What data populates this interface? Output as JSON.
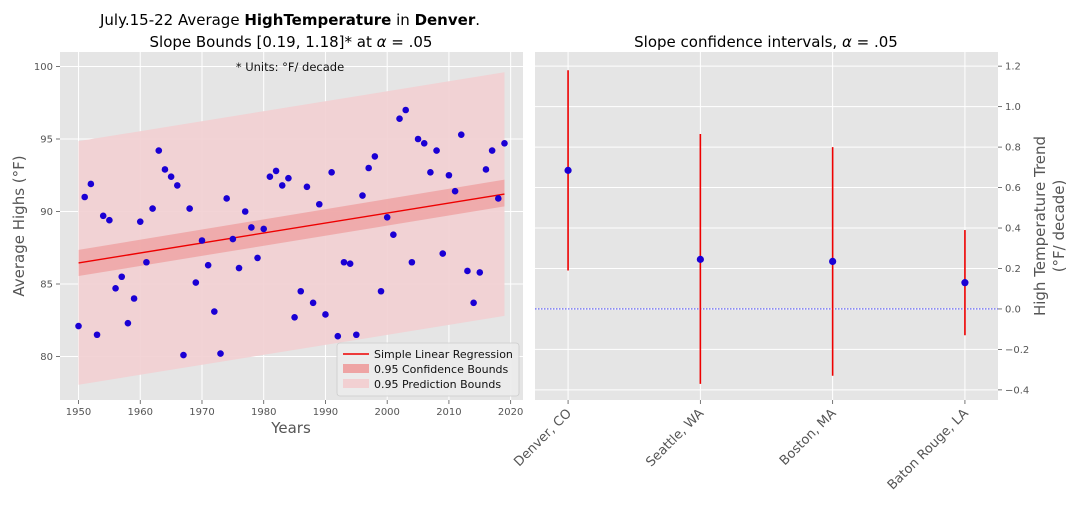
{
  "chart_data": [
    {
      "type": "scatter",
      "title": {
        "l1_a": "July.15-22 Average ",
        "l1_b": "HighTemperature",
        "l1_c": " in ",
        "l1_d": "Denver",
        "l1_e": ".",
        "l2_a": "Slope Bounds [0.19, 1.18]* at ",
        "l2_b": "α",
        "l2_c": " = .05"
      },
      "annotation": "* Units:  °F/ decade",
      "xlabel": "Years",
      "ylabel": "Average Highs (°F)",
      "xlim": [
        1947,
        2022
      ],
      "ylim": [
        77.0,
        101.0
      ],
      "xticks": [
        1950,
        1960,
        1970,
        1980,
        1990,
        2000,
        2010,
        2020
      ],
      "yticks": [
        80,
        85,
        90,
        95,
        100
      ],
      "grid": true,
      "legend_position": "lower-right",
      "legend": [
        {
          "label": "Simple Linear Regression",
          "kind": "line",
          "color": "#ee0000"
        },
        {
          "label": "0.95 Confidence Bounds",
          "kind": "patch",
          "color": "#f0a8a8"
        },
        {
          "label": "0.95 Prediction Bounds",
          "kind": "patch",
          "color": "#f2d0d2"
        }
      ],
      "regression": {
        "x": [
          1950,
          2019
        ],
        "y": [
          86.45,
          91.2
        ]
      },
      "confidence_band": {
        "x": [
          1950,
          2019
        ],
        "lower": [
          85.55,
          90.35
        ],
        "upper": [
          87.35,
          92.2
        ]
      },
      "prediction_band": {
        "x": [
          1950,
          2019
        ],
        "lower": [
          78.05,
          82.8
        ],
        "upper": [
          94.85,
          99.6
        ]
      },
      "points_color": "#1a00d4",
      "points": [
        [
          1950,
          82.1
        ],
        [
          1951,
          91.0
        ],
        [
          1952,
          91.9
        ],
        [
          1953,
          81.5
        ],
        [
          1954,
          89.7
        ],
        [
          1955,
          89.4
        ],
        [
          1956,
          84.7
        ],
        [
          1957,
          85.5
        ],
        [
          1958,
          82.3
        ],
        [
          1959,
          84.0
        ],
        [
          1960,
          89.3
        ],
        [
          1961,
          86.5
        ],
        [
          1962,
          90.2
        ],
        [
          1963,
          94.2
        ],
        [
          1964,
          92.9
        ],
        [
          1965,
          92.4
        ],
        [
          1966,
          91.8
        ],
        [
          1967,
          80.1
        ],
        [
          1968,
          90.2
        ],
        [
          1969,
          85.1
        ],
        [
          1970,
          88.0
        ],
        [
          1971,
          86.3
        ],
        [
          1972,
          83.1
        ],
        [
          1973,
          80.2
        ],
        [
          1974,
          90.9
        ],
        [
          1975,
          88.1
        ],
        [
          1976,
          86.1
        ],
        [
          1977,
          90.0
        ],
        [
          1978,
          88.9
        ],
        [
          1979,
          86.8
        ],
        [
          1980,
          88.8
        ],
        [
          1981,
          92.4
        ],
        [
          1982,
          92.8
        ],
        [
          1983,
          91.8
        ],
        [
          1984,
          92.3
        ],
        [
          1985,
          82.7
        ],
        [
          1986,
          84.5
        ],
        [
          1987,
          91.7
        ],
        [
          1988,
          83.7
        ],
        [
          1989,
          90.5
        ],
        [
          1990,
          82.9
        ],
        [
          1991,
          92.7
        ],
        [
          1992,
          81.4
        ],
        [
          1993,
          86.5
        ],
        [
          1994,
          86.4
        ],
        [
          1995,
          81.5
        ],
        [
          1996,
          91.1
        ],
        [
          1997,
          93.0
        ],
        [
          1998,
          93.8
        ],
        [
          1999,
          84.5
        ],
        [
          2000,
          89.6
        ],
        [
          2001,
          88.4
        ],
        [
          2002,
          96.4
        ],
        [
          2003,
          97.0
        ],
        [
          2004,
          86.5
        ],
        [
          2005,
          95.0
        ],
        [
          2006,
          94.7
        ],
        [
          2007,
          92.7
        ],
        [
          2008,
          94.2
        ],
        [
          2009,
          87.1
        ],
        [
          2010,
          92.5
        ],
        [
          2011,
          91.4
        ],
        [
          2012,
          95.3
        ],
        [
          2013,
          85.9
        ],
        [
          2014,
          83.7
        ],
        [
          2015,
          85.8
        ],
        [
          2016,
          92.9
        ],
        [
          2017,
          94.2
        ],
        [
          2018,
          90.9
        ],
        [
          2019,
          94.7
        ]
      ]
    },
    {
      "type": "errorbar",
      "title": {
        "a": "Slope confidence intervals, ",
        "b": "α",
        "c": " = .05"
      },
      "ylabel_line1": "High Temperature Trend",
      "ylabel_line2": "(°F/ decade)",
      "ylim": [
        -0.45,
        1.27
      ],
      "yticks": [
        -0.4,
        -0.2,
        0.0,
        0.2,
        0.4,
        0.6,
        0.8,
        1.0,
        1.2
      ],
      "ytick_labels": [
        "−0.4",
        "−0.2",
        "0.0",
        "0.2",
        "0.4",
        "0.6",
        "0.8",
        "1.0",
        "1.2"
      ],
      "grid": true,
      "reference_line": {
        "y": 0.0,
        "color": "#3333ff"
      },
      "bar_color": "#ee0000",
      "point_color": "#1a00d4",
      "categories": [
        "Denver, CO",
        "Seattle, WA",
        "Boston, MA",
        "Baton Rouge, LA"
      ],
      "estimates": [
        0.685,
        0.245,
        0.235,
        0.13
      ],
      "lower": [
        0.19,
        -0.37,
        -0.33,
        -0.13
      ],
      "upper": [
        1.18,
        0.865,
        0.8,
        0.39
      ]
    }
  ]
}
